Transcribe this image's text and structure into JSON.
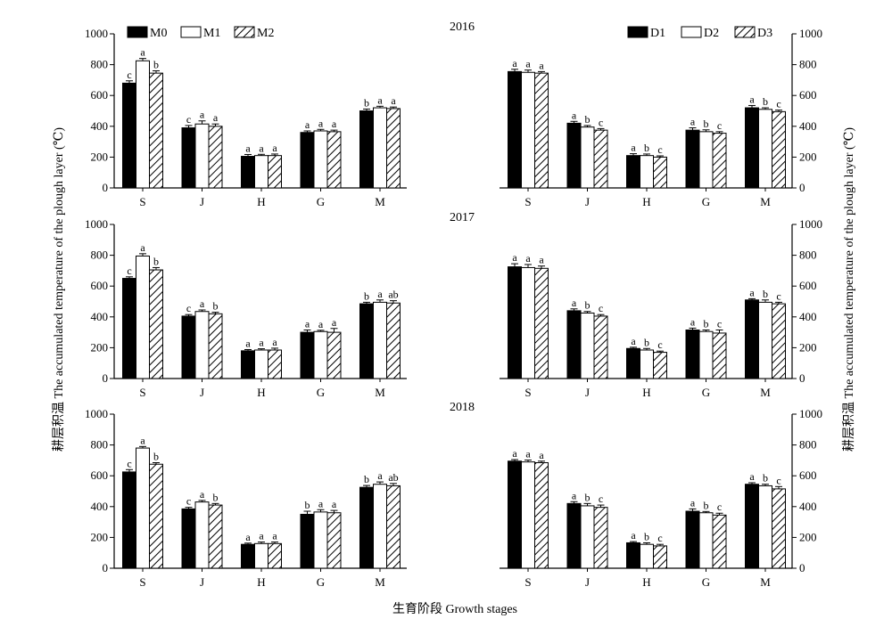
{
  "figure": {
    "ylabel_left": "耕层积温  The accumulated temperature of the plough layer (℃)",
    "ylabel_right": "耕层积温  The accumulated temperature of the plough layer (℃)",
    "xlabel": "生育阶段 Growth stages"
  },
  "colors": {
    "M0": "#000000",
    "M1": "#ffffff",
    "M2": "hatch",
    "D1": "#000000",
    "D2": "#ffffff",
    "D3": "hatch"
  },
  "chart_data": [
    {
      "type": "bar",
      "year": "2016",
      "year_label": "2016",
      "ylabel": "",
      "xlabel": "",
      "categories": [
        "S",
        "J",
        "H",
        "G",
        "M"
      ],
      "ylim": [
        0,
        1000
      ],
      "yticks": [
        0,
        200,
        400,
        600,
        800,
        1000
      ],
      "legend_position": "top-left",
      "series": [
        {
          "name": "M0",
          "fill": "solid",
          "values": [
            680,
            390,
            205,
            360,
            500
          ],
          "errors": [
            15,
            15,
            12,
            10,
            12
          ],
          "letters": [
            "c",
            "c",
            "a",
            "a",
            "b"
          ]
        },
        {
          "name": "M1",
          "fill": "white",
          "values": [
            825,
            415,
            210,
            370,
            520
          ],
          "errors": [
            15,
            20,
            8,
            10,
            10
          ],
          "letters": [
            "a",
            "a",
            "a",
            "a",
            "a"
          ]
        },
        {
          "name": "M2",
          "fill": "hatch",
          "values": [
            745,
            400,
            210,
            365,
            515
          ],
          "errors": [
            15,
            15,
            10,
            10,
            10
          ],
          "letters": [
            "b",
            "a",
            "a",
            "a",
            "a"
          ]
        }
      ]
    },
    {
      "type": "bar",
      "year": "2016",
      "ylabel": "",
      "xlabel": "",
      "categories": [
        "S",
        "J",
        "H",
        "G",
        "M"
      ],
      "ylim": [
        0,
        1000
      ],
      "yticks": [
        0,
        200,
        400,
        600,
        800,
        1000
      ],
      "legend_position": "top-right",
      "series": [
        {
          "name": "D1",
          "fill": "solid",
          "values": [
            755,
            420,
            210,
            375,
            520
          ],
          "errors": [
            15,
            12,
            12,
            15,
            15
          ],
          "letters": [
            "a",
            "a",
            "a",
            "a",
            "a"
          ]
        },
        {
          "name": "D2",
          "fill": "white",
          "values": [
            750,
            395,
            210,
            365,
            510
          ],
          "errors": [
            15,
            10,
            10,
            12,
            10
          ],
          "letters": [
            "a",
            "b",
            "b",
            "b",
            "b"
          ]
        },
        {
          "name": "D3",
          "fill": "hatch",
          "values": [
            745,
            375,
            200,
            355,
            495
          ],
          "errors": [
            10,
            10,
            8,
            10,
            10
          ],
          "letters": [
            "a",
            "c",
            "c",
            "c",
            "c"
          ]
        }
      ]
    },
    {
      "type": "bar",
      "year": "2017",
      "year_label": "2017",
      "ylabel": "",
      "xlabel": "",
      "categories": [
        "S",
        "J",
        "H",
        "G",
        "M"
      ],
      "ylim": [
        0,
        1000
      ],
      "yticks": [
        0,
        200,
        400,
        600,
        800,
        1000
      ],
      "series": [
        {
          "name": "M0",
          "fill": "solid",
          "values": [
            650,
            405,
            180,
            300,
            485
          ],
          "errors": [
            10,
            10,
            8,
            15,
            10
          ],
          "letters": [
            "c",
            "c",
            "a",
            "a",
            "b"
          ]
        },
        {
          "name": "M1",
          "fill": "white",
          "values": [
            795,
            435,
            185,
            305,
            495
          ],
          "errors": [
            15,
            10,
            8,
            8,
            15
          ],
          "letters": [
            "a",
            "a",
            "a",
            "a",
            "a"
          ]
        },
        {
          "name": "M2",
          "fill": "hatch",
          "values": [
            705,
            420,
            185,
            300,
            490
          ],
          "errors": [
            15,
            10,
            12,
            25,
            15
          ],
          "letters": [
            "b",
            "b",
            "a",
            "a",
            "ab"
          ]
        }
      ]
    },
    {
      "type": "bar",
      "year": "2017",
      "ylabel": "",
      "xlabel": "",
      "categories": [
        "S",
        "J",
        "H",
        "G",
        "M"
      ],
      "ylim": [
        0,
        1000
      ],
      "yticks": [
        0,
        200,
        400,
        600,
        800,
        1000
      ],
      "series": [
        {
          "name": "D1",
          "fill": "solid",
          "values": [
            725,
            440,
            195,
            315,
            510
          ],
          "errors": [
            20,
            12,
            8,
            12,
            8
          ],
          "letters": [
            "a",
            "a",
            "a",
            "a",
            "a"
          ]
        },
        {
          "name": "D2",
          "fill": "white",
          "values": [
            720,
            425,
            185,
            305,
            495
          ],
          "errors": [
            20,
            10,
            10,
            10,
            15
          ],
          "letters": [
            "a",
            "b",
            "b",
            "b",
            "b"
          ]
        },
        {
          "name": "D3",
          "fill": "hatch",
          "values": [
            715,
            405,
            170,
            295,
            485
          ],
          "errors": [
            15,
            10,
            8,
            20,
            10
          ],
          "letters": [
            "a",
            "c",
            "c",
            "c",
            "c"
          ]
        }
      ]
    },
    {
      "type": "bar",
      "year": "2018",
      "year_label": "2018",
      "ylabel": "",
      "xlabel": "",
      "categories": [
        "S",
        "J",
        "H",
        "G",
        "M"
      ],
      "ylim": [
        0,
        1000
      ],
      "yticks": [
        0,
        200,
        400,
        600,
        800,
        1000
      ],
      "series": [
        {
          "name": "M0",
          "fill": "solid",
          "values": [
            625,
            385,
            155,
            350,
            525
          ],
          "errors": [
            15,
            10,
            8,
            20,
            12
          ],
          "letters": [
            "c",
            "c",
            "a",
            "b",
            "b"
          ]
        },
        {
          "name": "M1",
          "fill": "white",
          "values": [
            780,
            430,
            160,
            365,
            545
          ],
          "errors": [
            10,
            10,
            10,
            15,
            15
          ],
          "letters": [
            "a",
            "a",
            "a",
            "a",
            "a"
          ]
        },
        {
          "name": "M2",
          "fill": "hatch",
          "values": [
            675,
            410,
            160,
            360,
            535
          ],
          "errors": [
            10,
            10,
            10,
            15,
            15
          ],
          "letters": [
            "b",
            "b",
            "a",
            "a",
            "ab"
          ]
        }
      ]
    },
    {
      "type": "bar",
      "year": "2018",
      "ylabel": "",
      "xlabel": "",
      "categories": [
        "S",
        "J",
        "H",
        "G",
        "M"
      ],
      "ylim": [
        0,
        1000
      ],
      "yticks": [
        0,
        200,
        400,
        600,
        800,
        1000
      ],
      "series": [
        {
          "name": "D1",
          "fill": "solid",
          "values": [
            695,
            420,
            165,
            370,
            545
          ],
          "errors": [
            10,
            12,
            8,
            15,
            10
          ],
          "letters": [
            "a",
            "a",
            "a",
            "a",
            "a"
          ]
        },
        {
          "name": "D2",
          "fill": "white",
          "values": [
            690,
            405,
            155,
            360,
            535
          ],
          "errors": [
            12,
            15,
            10,
            8,
            10
          ],
          "letters": [
            "a",
            "b",
            "b",
            "b",
            "b"
          ]
        },
        {
          "name": "D3",
          "fill": "hatch",
          "values": [
            685,
            395,
            145,
            345,
            515
          ],
          "errors": [
            10,
            15,
            10,
            12,
            15
          ],
          "letters": [
            "a",
            "c",
            "c",
            "c",
            "c"
          ]
        }
      ]
    }
  ]
}
